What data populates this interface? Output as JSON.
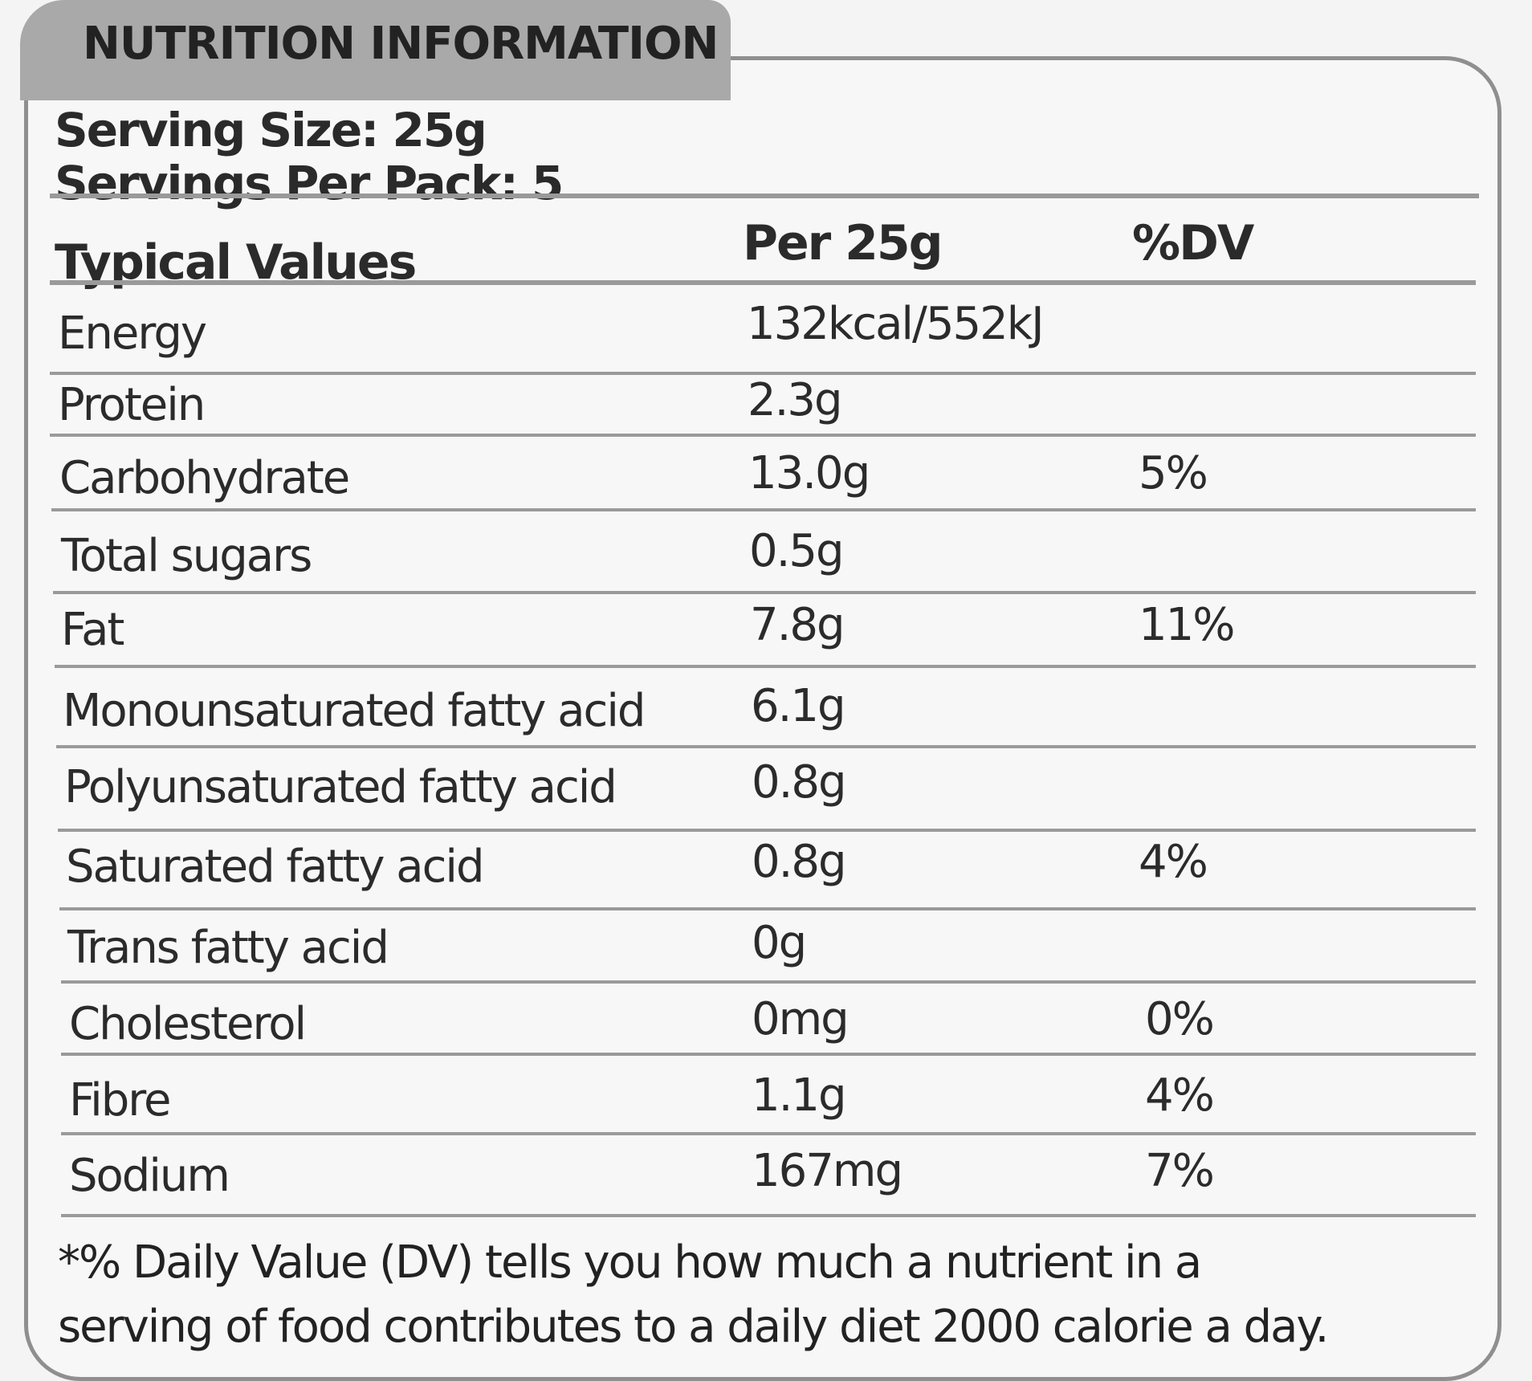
{
  "title": "NUTRITION INFORMATION",
  "serving_size": "Serving Size: 25g",
  "servings_per_pack": "Servings Per Pack: 5",
  "columns": [
    "Typical Values",
    "Per 25g",
    "%DV"
  ],
  "rows": [
    {
      "name": "Energy",
      "value": "132kcal/552kJ",
      "dv": ""
    },
    {
      "name": "Protein",
      "value": "2.3g",
      "dv": ""
    },
    {
      "name": "Carbohydrate",
      "value": "13.0g",
      "dv": "5%"
    },
    {
      "name": "Total sugars",
      "value": "0.5g",
      "dv": ""
    },
    {
      "name": "Fat",
      "value": "7.8g",
      "dv": "11%"
    },
    {
      "name": "Monounsaturated fatty acid",
      "value": "6.1g",
      "dv": ""
    },
    {
      "name": "Polyunsaturated fatty acid",
      "value": "0.8g",
      "dv": ""
    },
    {
      "name": "Saturated fatty acid",
      "value": "0.8g",
      "dv": "4%"
    },
    {
      "name": "Trans fatty acid",
      "value": "0g",
      "dv": ""
    },
    {
      "name": "Cholesterol",
      "value": "0mg",
      "dv": "0%"
    },
    {
      "name": "Fibre",
      "value": "1.1g",
      "dv": "4%"
    },
    {
      "name": "Sodium",
      "value": "167mg",
      "dv": "7%"
    }
  ],
  "footnote": [
    "*% Daily Value (DV) tells you how much a nutrient in a",
    "serving of food contributes to a daily diet 2000 calorie a day."
  ],
  "colors": {
    "tab": "#a9a9a9",
    "border": "#8f8f8f",
    "text": "#2a2a2a"
  }
}
